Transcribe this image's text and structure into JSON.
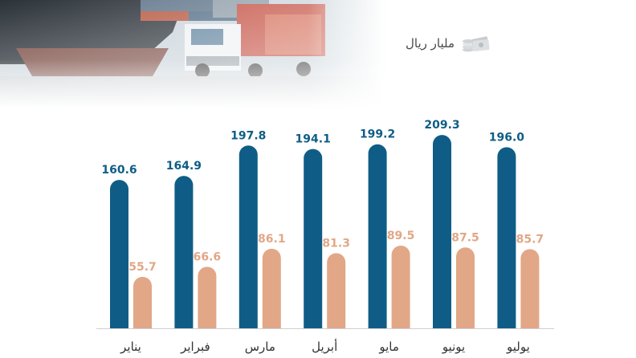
{
  "unit_label": "مليار ريال",
  "colors": {
    "series_primary": "#0f5d86",
    "series_secondary": "#e1a787",
    "baseline": "#cfcfcf"
  },
  "icons": {
    "unit": "money-stack-icon",
    "banner": "ship-truck-photo"
  },
  "chart_data": {
    "type": "bar",
    "title": "",
    "xlabel": "",
    "ylabel": "",
    "ylim": [
      0,
      225
    ],
    "grid": false,
    "categories": [
      "يناير",
      "فبراير",
      "مارس",
      "أبريل",
      "مايو",
      "يونيو",
      "يوليو"
    ],
    "series": [
      {
        "values": [
          160.6,
          164.9,
          197.8,
          194.1,
          199.2,
          209.3,
          196.0
        ],
        "labels": [
          "160.6",
          "164.9",
          "197.8",
          "194.1",
          "199.2",
          "209.3",
          "196.0"
        ]
      },
      {
        "values": [
          55.7,
          66.6,
          86.1,
          81.3,
          89.5,
          87.5,
          85.7
        ],
        "labels": [
          "55.7",
          "66.6",
          "86.1",
          "81.3",
          "89.5",
          "87.5",
          "85.7"
        ]
      }
    ]
  }
}
